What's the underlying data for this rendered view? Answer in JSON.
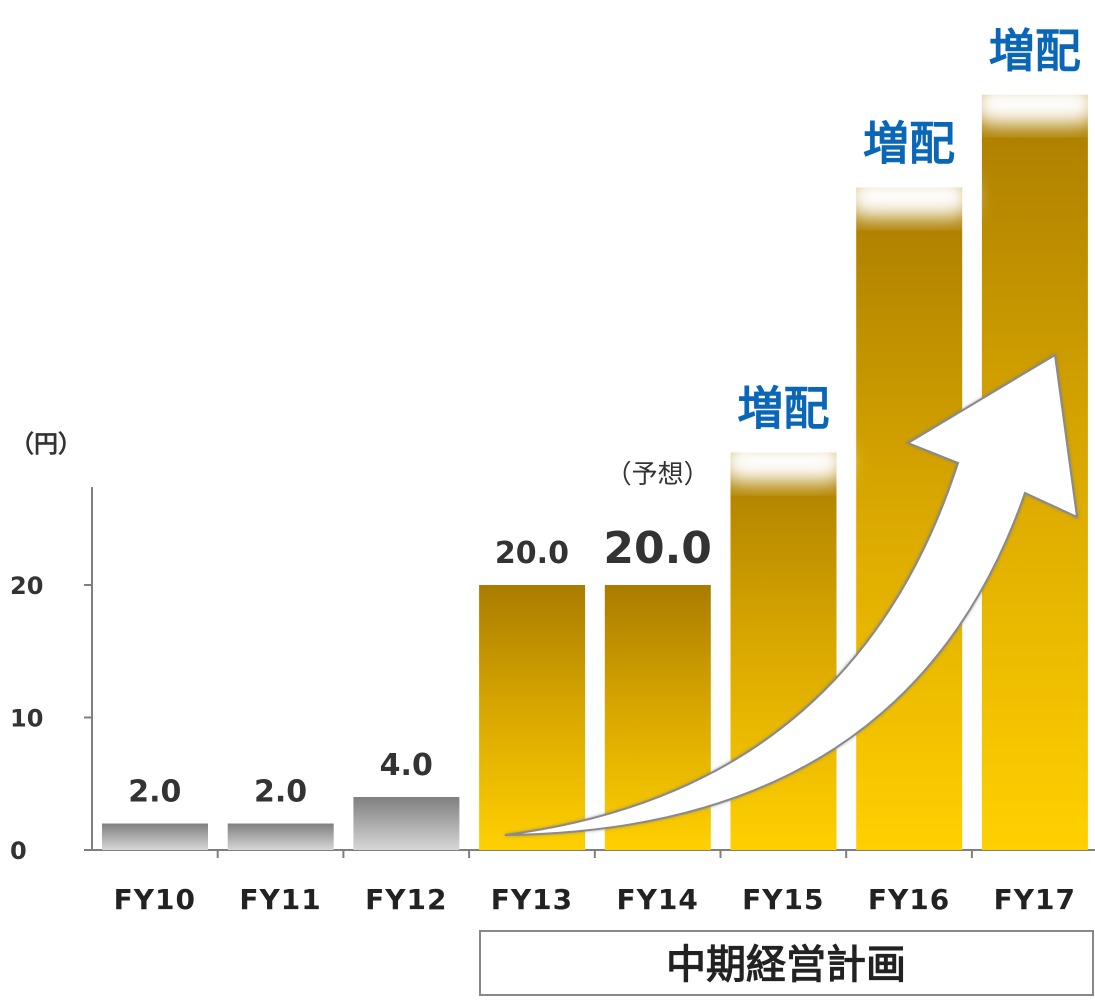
{
  "chart_data": {
    "type": "bar",
    "y_unit": "（円）",
    "categories": [
      "FY10",
      "FY11",
      "FY12",
      "FY13",
      "FY14",
      "FY15",
      "FY16",
      "FY17"
    ],
    "values": [
      2.0,
      2.0,
      4.0,
      20.0,
      20.0,
      30.0,
      50.0,
      57.0
    ],
    "data_labels": [
      "2.0",
      "2.0",
      "4.0",
      "20.0",
      "20.0",
      "",
      "",
      ""
    ],
    "y_ticks": [
      "0",
      "10",
      "20"
    ],
    "y_ticks_values": [
      0,
      10,
      20
    ],
    "ylim": [
      0,
      57
    ],
    "grid": false,
    "forecast_note": "（予想）",
    "increase_label": "増配",
    "plan_label": "中期経営計画",
    "colors": {
      "gray_top": "#7f7f7f",
      "gray_bottom": "#d7d7d7",
      "gold_top": "#a97c00",
      "gold_bottom": "#ffd000",
      "blue_text": "#0a66b7"
    }
  }
}
